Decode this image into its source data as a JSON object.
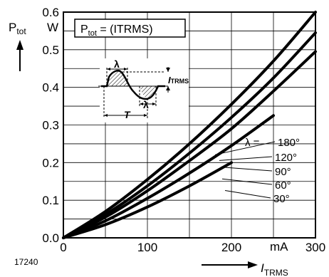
{
  "chart_data": {
    "type": "line",
    "x_label_symbol": "I",
    "x_label_sub": "TRMS",
    "y_label_symbol": "P",
    "y_label_sub": "tot",
    "y_unit": "W",
    "x_unit": "mA",
    "xlim": [
      0,
      300
    ],
    "ylim": [
      0,
      0.6
    ],
    "x_ticks": [
      "0",
      "100",
      "200",
      "300"
    ],
    "y_ticks": [
      "0.0",
      "0.1",
      "0.2",
      "0.3",
      "0.4",
      "0.5",
      "0.6"
    ],
    "grid": true,
    "formula_box": {
      "p": "P",
      "sub": "tot",
      "rest": " = (ITRMS)"
    },
    "figure_id": "17240",
    "lambda_label": "λ = ",
    "series": [
      {
        "name": "180°",
        "x": [
          0,
          50,
          100,
          150,
          200,
          250,
          300
        ],
        "y": [
          0,
          0.07,
          0.155,
          0.25,
          0.355,
          0.47,
          0.6
        ]
      },
      {
        "name": "120°",
        "x": [
          0,
          50,
          100,
          150,
          200,
          250,
          300
        ],
        "y": [
          0,
          0.062,
          0.138,
          0.225,
          0.32,
          0.425,
          0.545
        ]
      },
      {
        "name": "90°",
        "x": [
          0,
          50,
          100,
          150,
          200,
          250,
          300
        ],
        "y": [
          0,
          0.055,
          0.125,
          0.205,
          0.29,
          0.39,
          0.495
        ]
      },
      {
        "name": "60°",
        "x": [
          0,
          50,
          100,
          150,
          200,
          250
        ],
        "y": [
          0,
          0.045,
          0.105,
          0.172,
          0.245,
          0.325
        ]
      },
      {
        "name": "30°",
        "x": [
          0,
          50,
          100,
          150,
          200
        ],
        "y": [
          0,
          0.035,
          0.082,
          0.138,
          0.2
        ]
      }
    ],
    "inset": {
      "lambda": "λ",
      "i_label": "I",
      "i_sub": "TRMS",
      "t_label": "T"
    }
  }
}
